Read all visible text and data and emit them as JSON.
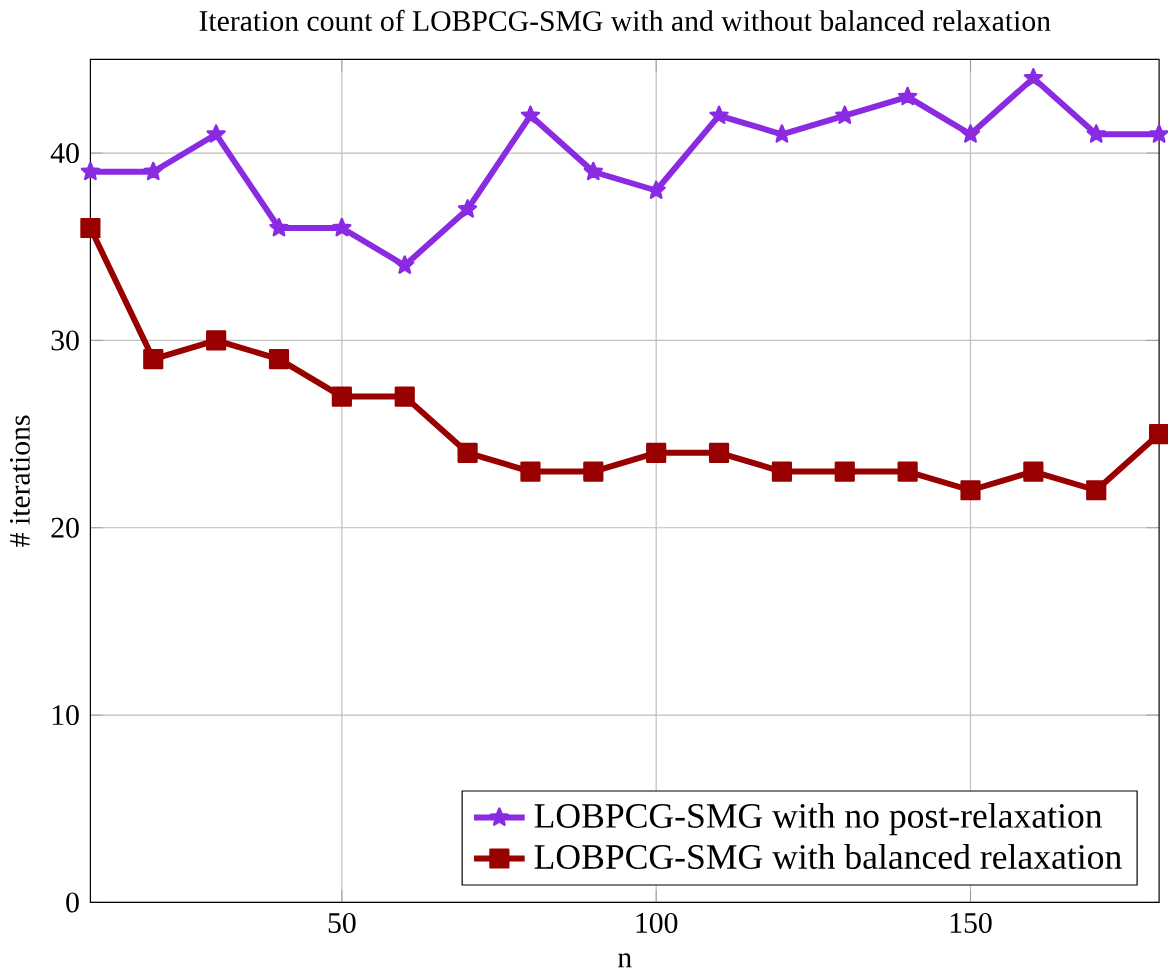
{
  "chart_data": {
    "type": "line",
    "title": "Iteration count of LOBPCG-SMG with and without balanced relaxation",
    "xlabel": "n",
    "ylabel": "# iterations",
    "x": [
      10,
      20,
      30,
      40,
      50,
      60,
      70,
      80,
      90,
      100,
      110,
      120,
      130,
      140,
      150,
      160,
      170,
      180
    ],
    "series": [
      {
        "name": "LOBPCG-SMG with no post-relaxation",
        "color": "#8a2be2",
        "marker": "star",
        "values": [
          39,
          39,
          41,
          36,
          36,
          34,
          37,
          42,
          39,
          38,
          42,
          41,
          42,
          43,
          41,
          44,
          41,
          41
        ]
      },
      {
        "name": "LOBPCG-SMG with balanced relaxation",
        "color": "#990000",
        "marker": "square",
        "values": [
          36,
          29,
          30,
          29,
          27,
          27,
          24,
          23,
          23,
          24,
          24,
          23,
          23,
          23,
          22,
          23,
          22,
          25
        ]
      }
    ],
    "xlim": [
      10,
      180
    ],
    "ylim": [
      0,
      45
    ],
    "xticks": [
      50,
      100,
      150
    ],
    "yticks": [
      0,
      10,
      20,
      30,
      40
    ],
    "grid": true,
    "legend": "bottom right"
  }
}
